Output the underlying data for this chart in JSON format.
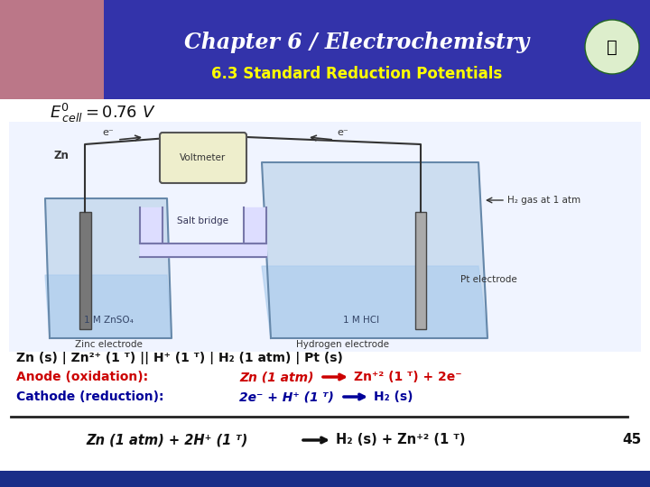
{
  "title": "Chapter 6 / Electrochemistry",
  "subtitle": "6.3 Standard Reduction Potentials",
  "title_color": "#FFFFFF",
  "subtitle_color": "#FFFF00",
  "header_bg": "#3333AA",
  "slide_bg": "#FFFFFF",
  "bottom_bar_color": "#1A2E88",
  "page_num": "45",
  "red_color": "#CC0000",
  "blue_color": "#000099",
  "black_color": "#111111"
}
